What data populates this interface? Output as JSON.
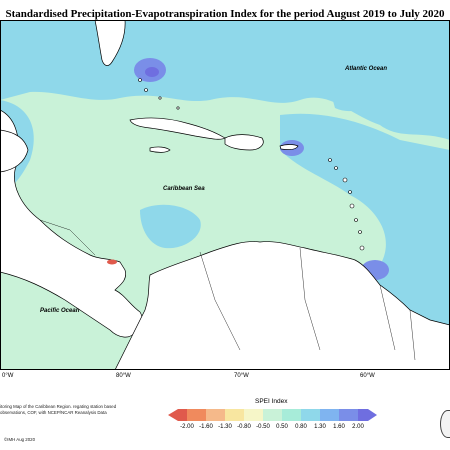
{
  "title": "Standardised Precipitation-Evapotranspiration Index for the period August 2019 to July 2020",
  "labels": {
    "atlantic": "Atlantic Ocean",
    "caribbean": "Caribbean Sea",
    "pacific": "Pacific Ocean"
  },
  "longitudes": [
    "0°W",
    "80°W",
    "70°W",
    "60°W"
  ],
  "legend": {
    "title": "SPEI Index",
    "ticks": [
      "-2.00",
      "-1.60",
      "-1.30",
      "-0.80",
      "-0.50",
      "0.50",
      "0.80",
      "1.30",
      "1.60",
      "2.00"
    ],
    "colors": [
      "#e05a4c",
      "#f08a5d",
      "#f5b98a",
      "#f8e6a0",
      "#f6f6c8",
      "#c9f2d8",
      "#a7ecd9",
      "#8fd8ea",
      "#7fb4f0",
      "#7a8ee8",
      "#6f6ee0"
    ]
  },
  "footnote": "itoring Map of the Caribbean Region. regating station based observations, COF, with NCEP/NCAR Reanalysis Data",
  "copyright": "©IMH Aug 2020",
  "colors": {
    "land": "#ffffff",
    "coast": "#000000",
    "near_normal": "#c9f2d8",
    "wet": "#8fd8ea",
    "very_wet": "#7a8ee8",
    "dry": "#e05a4c"
  }
}
